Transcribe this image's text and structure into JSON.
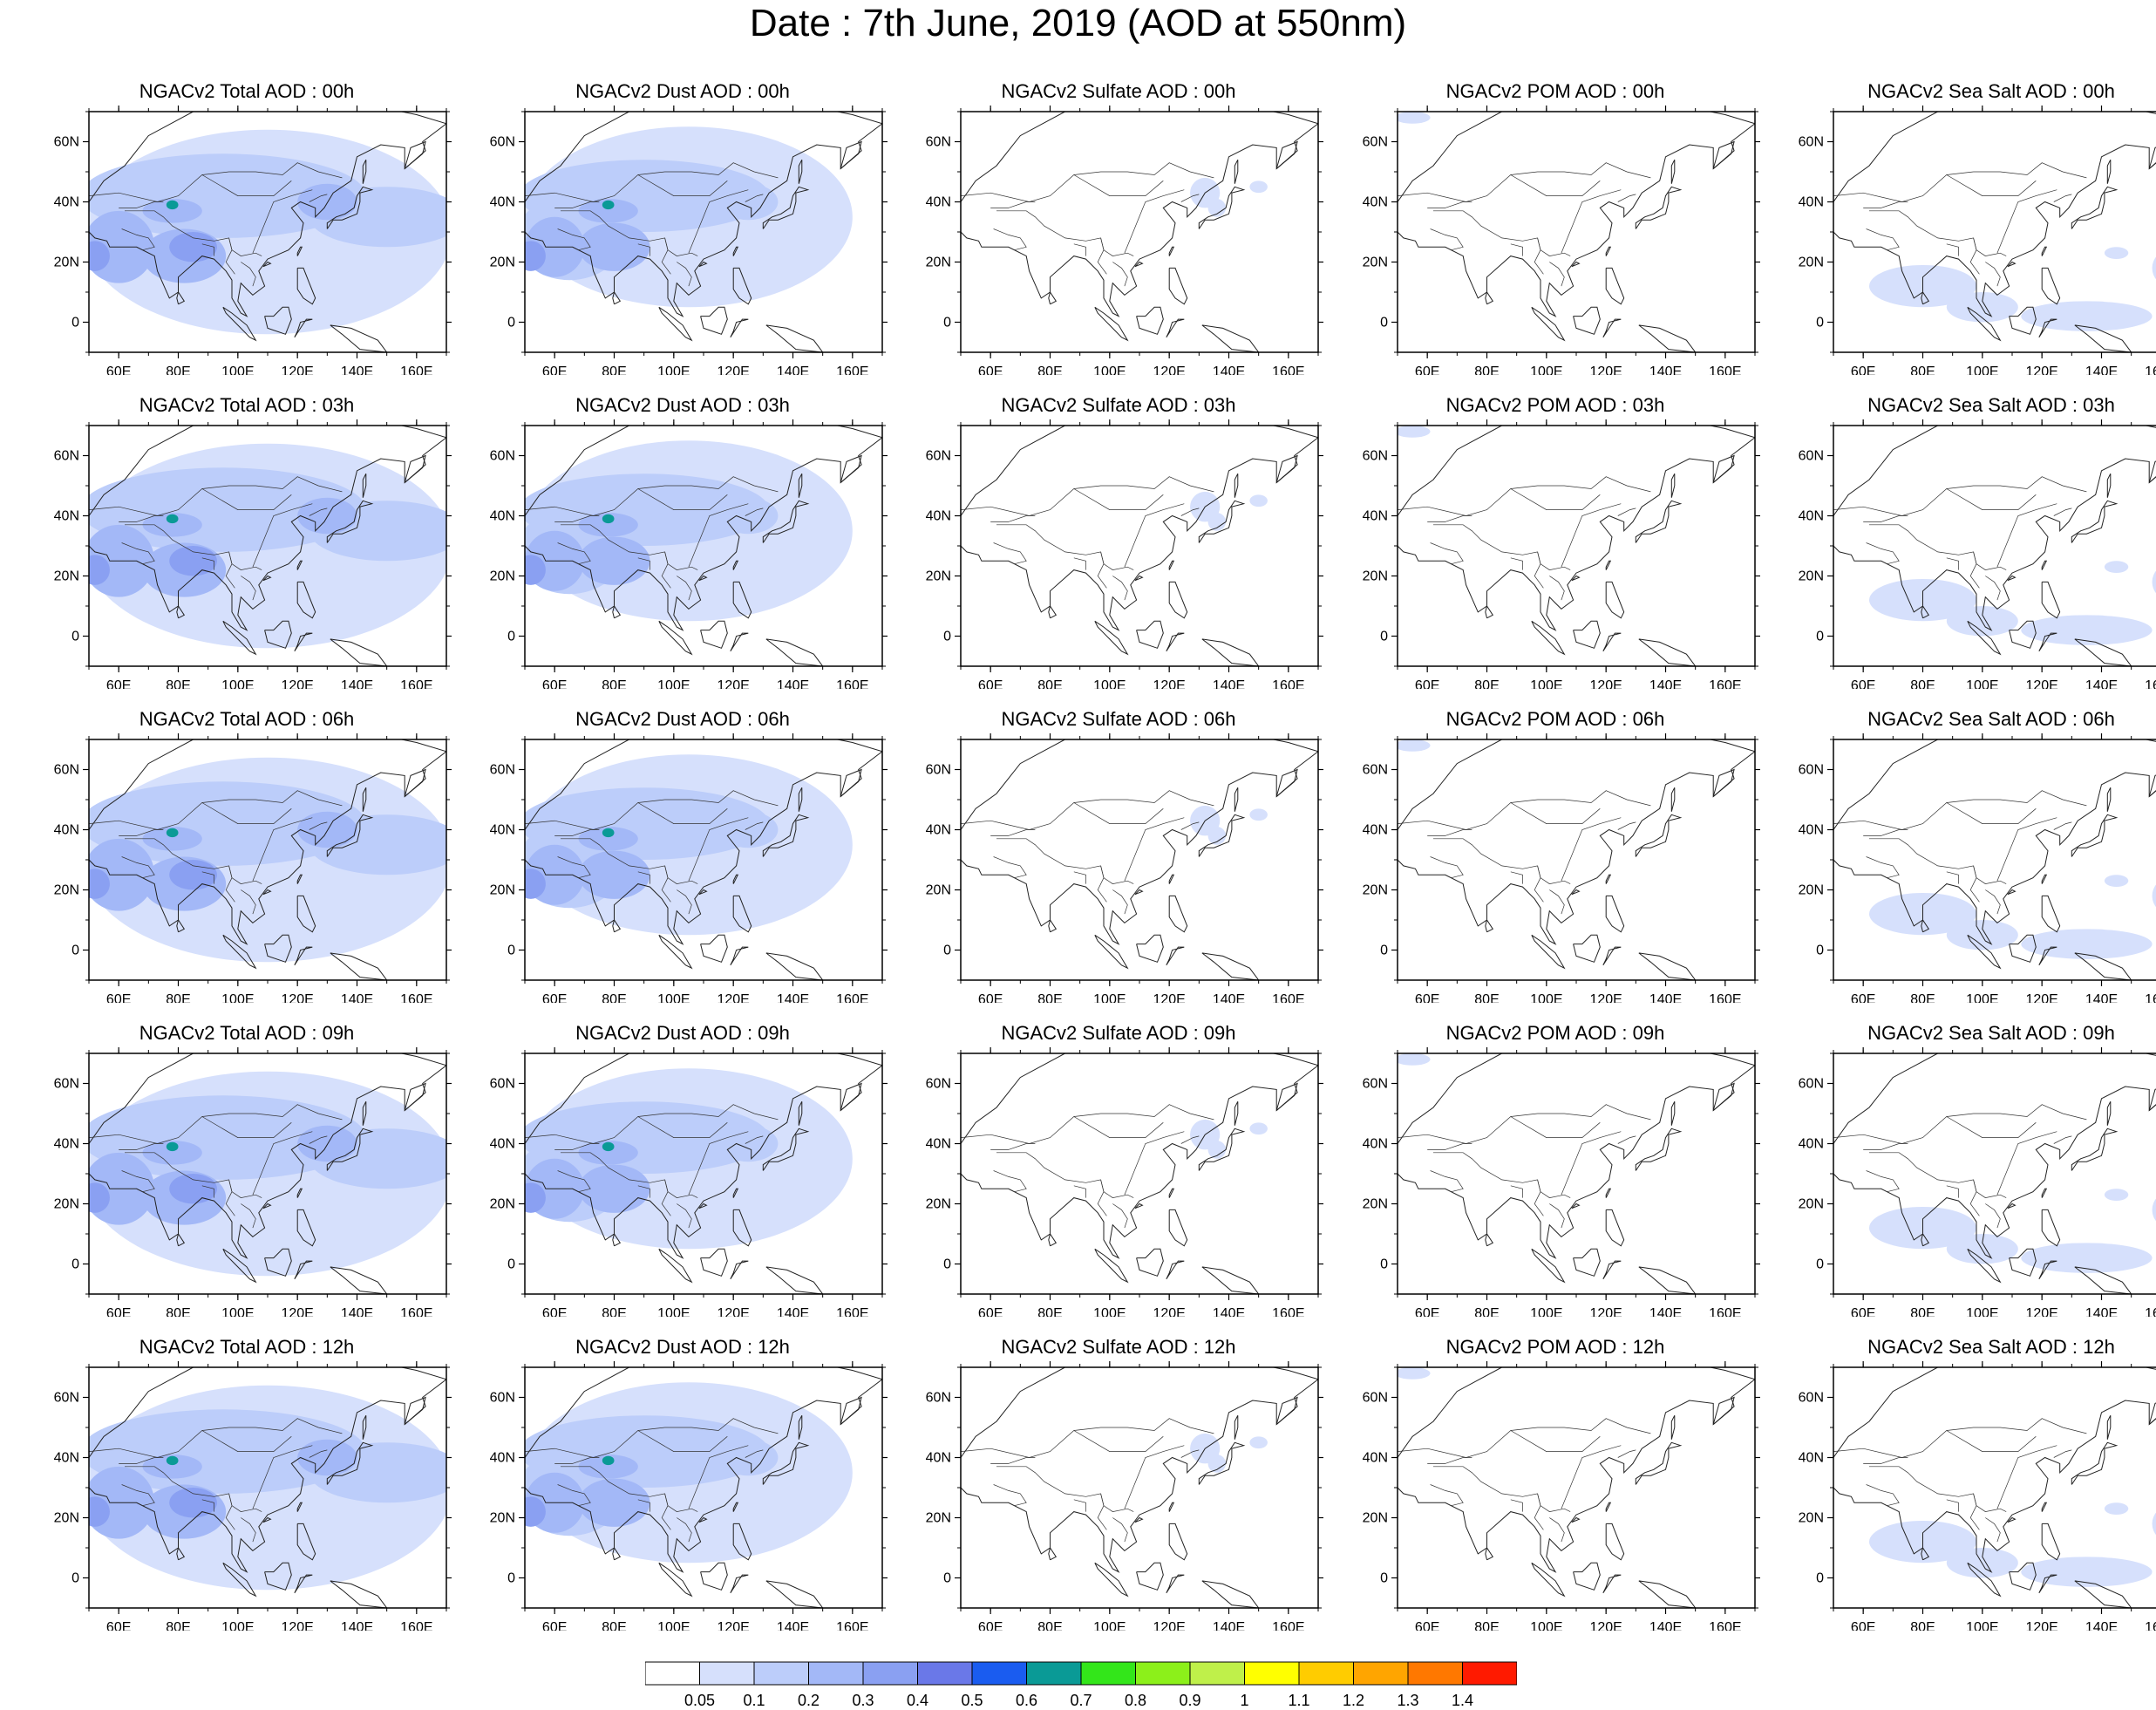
{
  "title": "Date : 7th June, 2019 (AOD at 550nm)",
  "map": {
    "lon_ticks": [
      "60E",
      "80E",
      "100E",
      "120E",
      "140E",
      "160E"
    ],
    "lat_ticks": [
      "60N",
      "40N",
      "20N",
      "0"
    ],
    "lon_range": [
      50,
      170
    ],
    "lat_range": [
      -10,
      70
    ]
  },
  "rows": [
    {
      "time": "00h",
      "panels": [
        {
          "title": "NGACv2 Total AOD : 00h",
          "species": "total"
        },
        {
          "title": "NGACv2 Dust AOD : 00h",
          "species": "dust"
        },
        {
          "title": "NGACv2 Sulfate AOD : 00h",
          "species": "sulfate"
        },
        {
          "title": "NGACv2 POM AOD : 00h",
          "species": "pom"
        },
        {
          "title": "NGACv2 Sea Salt AOD : 00h",
          "species": "seasalt"
        }
      ]
    },
    {
      "time": "03h",
      "panels": [
        {
          "title": "NGACv2 Total AOD : 03h",
          "species": "total"
        },
        {
          "title": "NGACv2 Dust AOD : 03h",
          "species": "dust"
        },
        {
          "title": "NGACv2 Sulfate AOD : 03h",
          "species": "sulfate"
        },
        {
          "title": "NGACv2 POM AOD : 03h",
          "species": "pom"
        },
        {
          "title": "NGACv2 Sea Salt AOD : 03h",
          "species": "seasalt"
        }
      ]
    },
    {
      "time": "06h",
      "panels": [
        {
          "title": "NGACv2 Total AOD : 06h",
          "species": "total"
        },
        {
          "title": "NGACv2 Dust AOD : 06h",
          "species": "dust"
        },
        {
          "title": "NGACv2 Sulfate AOD : 06h",
          "species": "sulfate"
        },
        {
          "title": "NGACv2 POM AOD : 06h",
          "species": "pom"
        },
        {
          "title": "NGACv2 Sea Salt AOD : 06h",
          "species": "seasalt"
        }
      ]
    },
    {
      "time": "09h",
      "panels": [
        {
          "title": "NGACv2 Total AOD : 09h",
          "species": "total"
        },
        {
          "title": "NGACv2 Dust AOD : 09h",
          "species": "dust"
        },
        {
          "title": "NGACv2 Sulfate AOD : 09h",
          "species": "sulfate"
        },
        {
          "title": "NGACv2 POM AOD : 09h",
          "species": "pom"
        },
        {
          "title": "NGACv2 Sea Salt  AOD : 09h",
          "species": "seasalt"
        }
      ]
    },
    {
      "time": "12h",
      "panels": [
        {
          "title": "NGACv2 Total AOD  : 12h",
          "species": "total"
        },
        {
          "title": "NGACv2 Dust AOD : 12h",
          "species": "dust"
        },
        {
          "title": "NGACv2 Sulfate AOD : 12h",
          "species": "sulfate"
        },
        {
          "title": "NGACv2 POM  AOD : 12h",
          "species": "pom"
        },
        {
          "title": "NGACv2 Sea Salt  AOD : 12h",
          "species": "seasalt"
        }
      ]
    }
  ],
  "colorbar": {
    "colors": [
      "#ffffff",
      "#d6e0fc",
      "#bccdfa",
      "#a3b8f7",
      "#8aa0f2",
      "#6a78e8",
      "#1a5cf0",
      "#0a9a96",
      "#33e61a",
      "#8cf01a",
      "#bff04a",
      "#ffff00",
      "#ffcc00",
      "#ffa500",
      "#ff7800",
      "#ff1a00"
    ],
    "labels": [
      "0.05",
      "0.1",
      "0.2",
      "0.3",
      "0.4",
      "0.5",
      "0.6",
      "0.7",
      "0.8",
      "0.9",
      "1",
      "1.1",
      "1.2",
      "1.3",
      "1.4"
    ]
  }
}
